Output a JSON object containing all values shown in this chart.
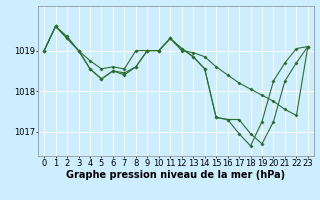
{
  "background_color": "#cceeff",
  "line_color": "#2d6e2d",
  "grid_color": "#ffffff",
  "xlabel": "Graphe pression niveau de la mer (hPa)",
  "xlim": [
    -0.5,
    23.5
  ],
  "ylim": [
    1016.4,
    1020.1
  ],
  "yticks": [
    1017.0,
    1018.0,
    1019.0
  ],
  "ytick_labels": [
    "1017",
    "1018",
    "1019"
  ],
  "xticks": [
    0,
    1,
    2,
    3,
    4,
    5,
    6,
    7,
    8,
    9,
    10,
    11,
    12,
    13,
    14,
    15,
    16,
    17,
    18,
    19,
    20,
    21,
    22,
    23
  ],
  "series1": [
    1019.0,
    1019.6,
    1019.35,
    1019.0,
    1018.75,
    1018.55,
    1018.6,
    1018.55,
    1019.0,
    1019.0,
    1019.0,
    1019.3,
    1019.0,
    1018.95,
    1018.85,
    1018.6,
    1018.4,
    1018.2,
    1018.05,
    1017.9,
    1017.75,
    1017.55,
    1017.4,
    1019.1
  ],
  "series2": [
    1019.0,
    1019.6,
    1019.3,
    1019.0,
    1018.55,
    1018.3,
    1018.5,
    1018.45,
    1018.6,
    1019.0,
    1019.0,
    1019.3,
    1019.05,
    1018.85,
    1018.55,
    1017.35,
    1017.3,
    1017.3,
    1016.95,
    1016.7,
    1017.25,
    1018.25,
    1018.7,
    1019.1
  ],
  "series3": [
    1019.0,
    1019.6,
    1019.3,
    1019.0,
    1018.55,
    1018.3,
    1018.5,
    1018.4,
    1018.6,
    1019.0,
    1019.0,
    1019.3,
    1019.05,
    1018.85,
    1018.55,
    1017.35,
    1017.3,
    1016.95,
    1016.65,
    1017.25,
    1018.25,
    1018.7,
    1019.05,
    1019.1
  ],
  "title_fontsize": 7,
  "tick_fontsize": 6
}
